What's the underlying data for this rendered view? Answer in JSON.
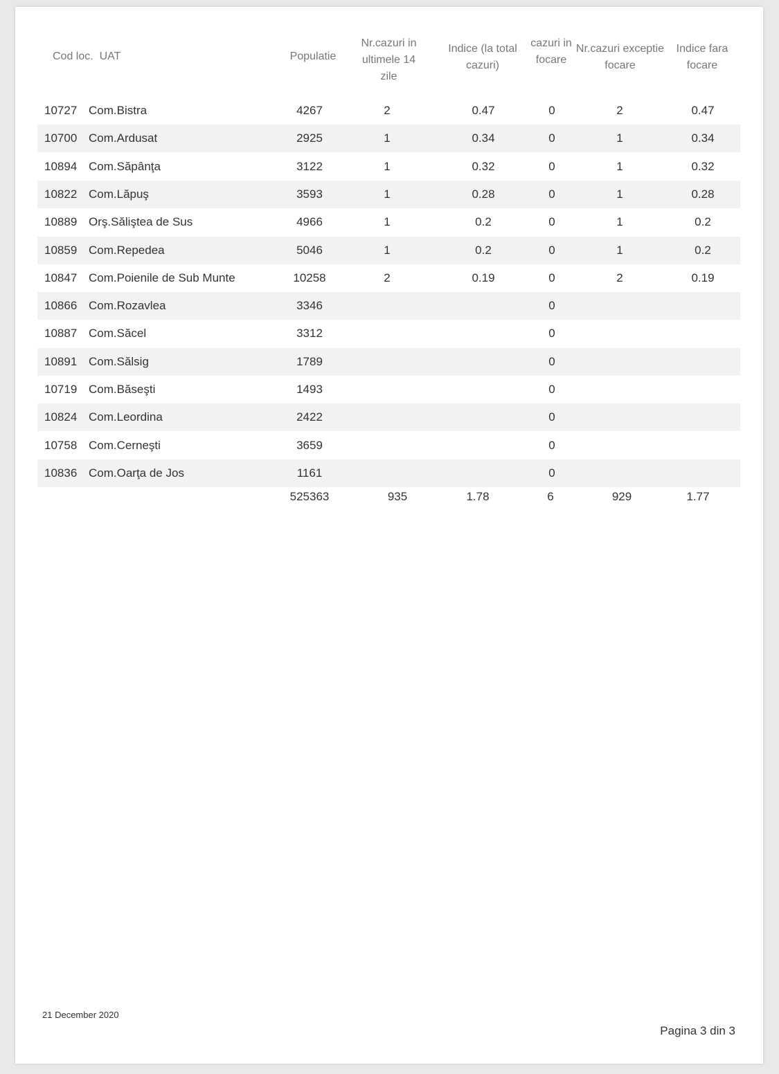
{
  "headers": {
    "cod": "Cod loc.",
    "uat": "UAT",
    "populatie": "Populatie",
    "nr_cazuri": "Nr.cazuri in ultimele 14 zile",
    "indice_total": "Indice (la total cazuri)",
    "cazuri_focare": "cazuri in focare",
    "nr_exceptie": "Nr.cazuri exceptie focare",
    "indice_fara": "Indice fara focare"
  },
  "rows": [
    {
      "cod": "10727",
      "uat": "Com.Bistra",
      "populatie": "4267",
      "nr": "2",
      "indice": "0.47",
      "focare": "0",
      "exceptie": "2",
      "fara": "0.47"
    },
    {
      "cod": "10700",
      "uat": "Com.Ardusat",
      "populatie": "2925",
      "nr": "1",
      "indice": "0.34",
      "focare": "0",
      "exceptie": "1",
      "fara": "0.34"
    },
    {
      "cod": "10894",
      "uat": "Com.Săpânţa",
      "populatie": "3122",
      "nr": "1",
      "indice": "0.32",
      "focare": "0",
      "exceptie": "1",
      "fara": "0.32"
    },
    {
      "cod": "10822",
      "uat": "Com.Lăpuş",
      "populatie": "3593",
      "nr": "1",
      "indice": "0.28",
      "focare": "0",
      "exceptie": "1",
      "fara": "0.28"
    },
    {
      "cod": "10889",
      "uat": "Orş.Săliştea de Sus",
      "populatie": "4966",
      "nr": "1",
      "indice": "0.2",
      "focare": "0",
      "exceptie": "1",
      "fara": "0.2"
    },
    {
      "cod": "10859",
      "uat": "Com.Repedea",
      "populatie": "5046",
      "nr": "1",
      "indice": "0.2",
      "focare": "0",
      "exceptie": "1",
      "fara": "0.2"
    },
    {
      "cod": "10847",
      "uat": "Com.Poienile de Sub Munte",
      "populatie": "10258",
      "nr": "2",
      "indice": "0.19",
      "focare": "0",
      "exceptie": "2",
      "fara": "0.19"
    },
    {
      "cod": "10866",
      "uat": "Com.Rozavlea",
      "populatie": "3346",
      "nr": "",
      "indice": "",
      "focare": "0",
      "exceptie": "",
      "fara": ""
    },
    {
      "cod": "10887",
      "uat": "Com.Săcel",
      "populatie": "3312",
      "nr": "",
      "indice": "",
      "focare": "0",
      "exceptie": "",
      "fara": ""
    },
    {
      "cod": "10891",
      "uat": "Com.Sălsig",
      "populatie": "1789",
      "nr": "",
      "indice": "",
      "focare": "0",
      "exceptie": "",
      "fara": ""
    },
    {
      "cod": "10719",
      "uat": "Com.Băseşti",
      "populatie": "1493",
      "nr": "",
      "indice": "",
      "focare": "0",
      "exceptie": "",
      "fara": ""
    },
    {
      "cod": "10824",
      "uat": "Com.Leordina",
      "populatie": "2422",
      "nr": "",
      "indice": "",
      "focare": "0",
      "exceptie": "",
      "fara": ""
    },
    {
      "cod": "10758",
      "uat": "Com.Cerneşti",
      "populatie": "3659",
      "nr": "",
      "indice": "",
      "focare": "0",
      "exceptie": "",
      "fara": ""
    },
    {
      "cod": "10836",
      "uat": "Com.Oarţa de Jos",
      "populatie": "1161",
      "nr": "",
      "indice": "",
      "focare": "0",
      "exceptie": "",
      "fara": ""
    }
  ],
  "totals": {
    "populatie": "525363",
    "nr": "935",
    "indice": "1.78",
    "focare": "6",
    "exceptie": "929",
    "fara": "1.77"
  },
  "footer": {
    "date": "21 December 2020",
    "page": "Pagina 3 din 3"
  }
}
